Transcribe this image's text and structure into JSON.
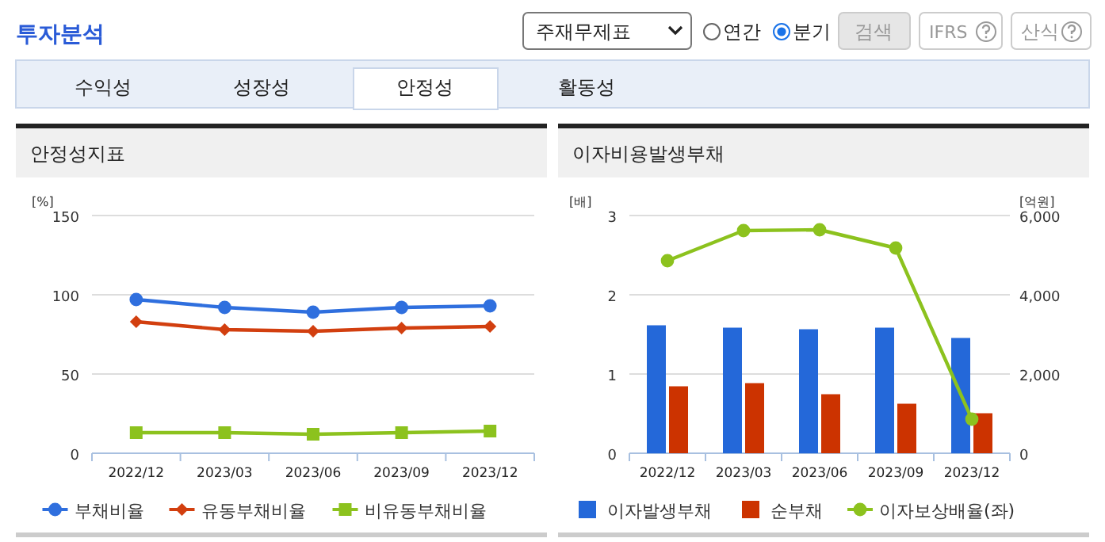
{
  "chart_data": [
    {
      "type": "other",
      "title": "투자분석",
      "annotations": [
        "주재무제표",
        "연간",
        "분기",
        "검색",
        "IFRS",
        "산식",
        "수익성",
        "성장성",
        "안정성",
        "활동성"
      ]
    },
    {
      "type": "line",
      "title": "안정성지표",
      "ylabel": "[%]",
      "categories": [
        "2022/12",
        "2023/03",
        "2023/06",
        "2023/09",
        "2023/12"
      ],
      "ylim": [
        0,
        150
      ],
      "yticks": [
        0,
        50,
        100,
        150
      ],
      "grid": "y",
      "legend": "bottom",
      "series": [
        {
          "name": "부채비율",
          "color": "#2f6fde",
          "marker": "circle",
          "values": [
            97,
            92,
            89,
            92,
            93
          ]
        },
        {
          "name": "유동부채비율",
          "color": "#d23f0f",
          "marker": "diamond",
          "values": [
            83,
            78,
            77,
            79,
            80
          ]
        },
        {
          "name": "비유동부채비율",
          "color": "#8cc21e",
          "marker": "square",
          "values": [
            13,
            13,
            12,
            13,
            14
          ]
        }
      ]
    },
    {
      "type": "bar",
      "title": "이자비용발생부채",
      "ylabel": "[배]",
      "y2label": "[억원]",
      "categories": [
        "2022/12",
        "2023/03",
        "2023/06",
        "2023/09",
        "2023/12"
      ],
      "ylim": [
        0,
        3
      ],
      "yticks": [
        0,
        1,
        2,
        3
      ],
      "y2lim": [
        0,
        6000
      ],
      "y2ticks": [
        0,
        {
          "value": 2000,
          "label": "2,000"
        },
        {
          "value": 4000,
          "label": "4,000"
        },
        {
          "value": 6000,
          "label": "6,000"
        }
      ],
      "grid": "y",
      "legend": "bottom",
      "series": [
        {
          "name": "이자발생부채",
          "color": "#2468d9",
          "axis": "y2",
          "values": [
            3230,
            3170,
            3130,
            3170,
            2910
          ]
        },
        {
          "name": "순부채",
          "color": "#cc3300",
          "axis": "y2",
          "values": [
            1690,
            1770,
            1490,
            1250,
            1010
          ]
        },
        {
          "name": "이자보상배율(좌)",
          "type": "line",
          "marker": "circle",
          "color": "#8cc21e",
          "values": [
            2.43,
            2.81,
            2.82,
            2.59,
            0.43
          ]
        }
      ]
    }
  ]
}
